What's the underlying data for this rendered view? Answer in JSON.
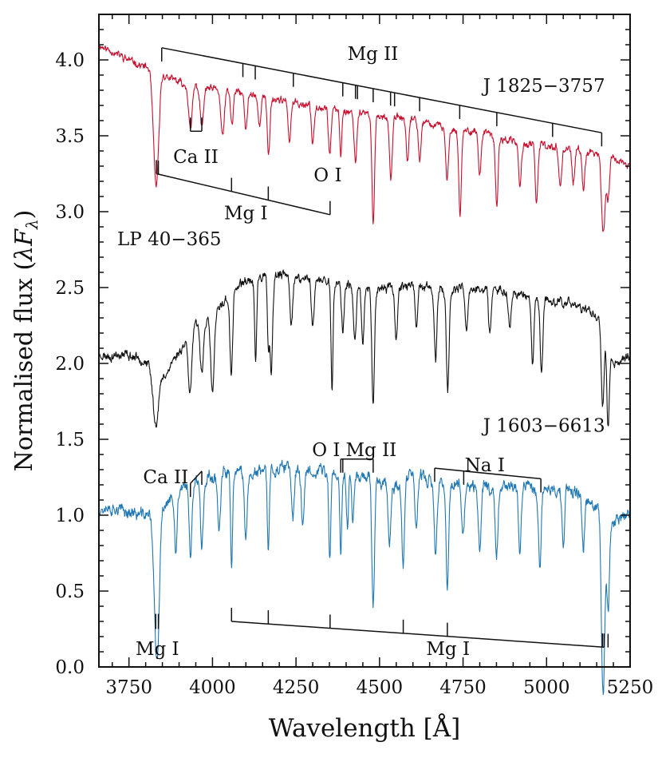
{
  "chart_data": {
    "type": "line",
    "xlabel": "Wavelength [Å]",
    "ylabel": "Normalised flux (λF_λ)",
    "ylabel_parts": {
      "main": "Normalised flux (",
      "sym": "λF",
      "sub": "λ",
      "close": ")"
    },
    "xlim": [
      3660,
      5250
    ],
    "ylim": [
      0.0,
      4.3
    ],
    "x_ticks": [
      3750,
      4000,
      4250,
      4500,
      4750,
      5000,
      5250
    ],
    "y_ticks": [
      0.0,
      0.5,
      1.0,
      1.5,
      2.0,
      2.5,
      3.0,
      3.5,
      4.0
    ],
    "x_tick_labels": [
      "3750",
      "4000",
      "4250",
      "4500",
      "4750",
      "5000",
      "5250"
    ],
    "y_tick_labels": [
      "0.0",
      "0.5",
      "1.0",
      "1.5",
      "2.0",
      "2.5",
      "3.0",
      "3.5",
      "4.0"
    ],
    "series": [
      {
        "name": "J 1825−3757",
        "color": "#c8102e",
        "seed": 11,
        "noise": 0.035,
        "continuum": [
          [
            3660,
            4.1
          ],
          [
            3800,
            3.95
          ],
          [
            3900,
            3.85
          ],
          [
            4000,
            3.8
          ],
          [
            4100,
            3.78
          ],
          [
            4200,
            3.74
          ],
          [
            4300,
            3.7
          ],
          [
            4400,
            3.66
          ],
          [
            4500,
            3.63
          ],
          [
            4600,
            3.61
          ],
          [
            4700,
            3.55
          ],
          [
            4800,
            3.52
          ],
          [
            4900,
            3.46
          ],
          [
            5000,
            3.43
          ],
          [
            5100,
            3.4
          ],
          [
            5200,
            3.35
          ],
          [
            5250,
            3.3
          ]
        ],
        "lines": [
          [
            3826,
            0.42,
            6
          ],
          [
            3832,
            0.35,
            5
          ],
          [
            3838,
            0.3,
            5
          ],
          [
            3934,
            0.3,
            5
          ],
          [
            3968,
            0.26,
            5
          ],
          [
            4030,
            0.3,
            5
          ],
          [
            4058,
            0.22,
            4
          ],
          [
            4100,
            0.25,
            4
          ],
          [
            4140,
            0.2,
            4
          ],
          [
            4168,
            0.38,
            4
          ],
          [
            4230,
            0.28,
            4
          ],
          [
            4300,
            0.25,
            4
          ],
          [
            4351,
            0.3,
            4
          ],
          [
            4384,
            0.3,
            3
          ],
          [
            4428,
            0.32,
            4
          ],
          [
            4481,
            0.7,
            4
          ],
          [
            4534,
            0.42,
            4
          ],
          [
            4584,
            0.3,
            4
          ],
          [
            4620,
            0.25,
            4
          ],
          [
            4702,
            0.36,
            4
          ],
          [
            4741,
            0.55,
            4
          ],
          [
            4800,
            0.28,
            4
          ],
          [
            4851,
            0.45,
            4
          ],
          [
            4920,
            0.3,
            4
          ],
          [
            4970,
            0.4,
            4
          ],
          [
            5041,
            0.25,
            4
          ],
          [
            5080,
            0.22,
            4
          ],
          [
            5110,
            0.25,
            4
          ],
          [
            5167,
            0.35,
            4
          ],
          [
            5173,
            0.32,
            4
          ],
          [
            5184,
            0.28,
            4
          ]
        ]
      },
      {
        "name": "LP 40−365",
        "color": "#111111",
        "seed": 23,
        "noise": 0.045,
        "continuum": [
          [
            3660,
            2.05
          ],
          [
            3750,
            2.05
          ],
          [
            3800,
            2.02
          ],
          [
            3850,
            1.9
          ],
          [
            3900,
            2.08
          ],
          [
            3950,
            2.25
          ],
          [
            4000,
            2.3
          ],
          [
            4050,
            2.45
          ],
          [
            4100,
            2.55
          ],
          [
            4200,
            2.58
          ],
          [
            4300,
            2.55
          ],
          [
            4400,
            2.52
          ],
          [
            4500,
            2.5
          ],
          [
            4600,
            2.52
          ],
          [
            4700,
            2.48
          ],
          [
            4800,
            2.5
          ],
          [
            4900,
            2.47
          ],
          [
            5000,
            2.42
          ],
          [
            5100,
            2.38
          ],
          [
            5180,
            2.25
          ],
          [
            5200,
            2.0
          ],
          [
            5250,
            2.05
          ]
        ],
        "lines": [
          [
            3830,
            0.35,
            8
          ],
          [
            3933,
            0.38,
            5
          ],
          [
            3968,
            0.3,
            5
          ],
          [
            4000,
            0.5,
            5
          ],
          [
            4056,
            0.55,
            4
          ],
          [
            4129,
            0.55,
            3
          ],
          [
            4167,
            0.42,
            3
          ],
          [
            4176,
            0.65,
            4
          ],
          [
            4236,
            0.3,
            4
          ],
          [
            4300,
            0.3,
            4
          ],
          [
            4358,
            0.7,
            3
          ],
          [
            4390,
            0.3,
            4
          ],
          [
            4426,
            0.38,
            4
          ],
          [
            4450,
            0.38,
            4
          ],
          [
            4481,
            0.75,
            4
          ],
          [
            4550,
            0.35,
            4
          ],
          [
            4610,
            0.3,
            4
          ],
          [
            4668,
            0.5,
            4
          ],
          [
            4704,
            0.65,
            4
          ],
          [
            4760,
            0.28,
            4
          ],
          [
            4830,
            0.3,
            4
          ],
          [
            4890,
            0.25,
            4
          ],
          [
            4958,
            0.45,
            4
          ],
          [
            4985,
            0.5,
            4
          ],
          [
            5168,
            0.55,
            4
          ],
          [
            5184,
            0.6,
            4
          ]
        ]
      },
      {
        "name": "J 1603−6613",
        "color": "#1f77b4",
        "seed": 37,
        "noise": 0.06,
        "continuum": [
          [
            3660,
            1.05
          ],
          [
            3750,
            1.02
          ],
          [
            3800,
            1.0
          ],
          [
            3850,
            1.05
          ],
          [
            3900,
            1.15
          ],
          [
            3950,
            1.22
          ],
          [
            4000,
            1.25
          ],
          [
            4100,
            1.27
          ],
          [
            4200,
            1.3
          ],
          [
            4300,
            1.3
          ],
          [
            4350,
            1.28
          ],
          [
            4400,
            1.27
          ],
          [
            4500,
            1.25
          ],
          [
            4550,
            1.2
          ],
          [
            4600,
            1.28
          ],
          [
            4650,
            1.22
          ],
          [
            4700,
            1.2
          ],
          [
            4800,
            1.18
          ],
          [
            4900,
            1.2
          ],
          [
            5000,
            1.18
          ],
          [
            5100,
            1.15
          ],
          [
            5150,
            1.05
          ],
          [
            5200,
            0.95
          ],
          [
            5250,
            1.0
          ]
        ],
        "lines": [
          [
            3830,
            0.75,
            6
          ],
          [
            3838,
            0.55,
            5
          ],
          [
            3890,
            0.4,
            4
          ],
          [
            3934,
            0.45,
            4
          ],
          [
            3968,
            0.4,
            4
          ],
          [
            4020,
            0.35,
            4
          ],
          [
            4057,
            0.6,
            3
          ],
          [
            4100,
            0.4,
            4
          ],
          [
            4167,
            0.5,
            3
          ],
          [
            4240,
            0.35,
            4
          ],
          [
            4270,
            0.35,
            4
          ],
          [
            4351,
            0.6,
            3
          ],
          [
            4384,
            0.5,
            3
          ],
          [
            4404,
            0.35,
            3
          ],
          [
            4420,
            0.35,
            3
          ],
          [
            4481,
            0.85,
            4
          ],
          [
            4530,
            0.4,
            4
          ],
          [
            4571,
            0.55,
            4
          ],
          [
            4610,
            0.35,
            4
          ],
          [
            4668,
            0.5,
            4
          ],
          [
            4703,
            0.65,
            4
          ],
          [
            4750,
            0.35,
            4
          ],
          [
            4800,
            0.4,
            4
          ],
          [
            4850,
            0.45,
            4
          ],
          [
            4920,
            0.45,
            4
          ],
          [
            4980,
            0.55,
            4
          ],
          [
            5050,
            0.35,
            4
          ],
          [
            5110,
            0.35,
            4
          ],
          [
            5167,
            0.75,
            4
          ],
          [
            5172,
            0.7,
            4
          ],
          [
            5184,
            0.6,
            4
          ]
        ]
      }
    ],
    "star_labels": [
      {
        "text": "J 1825−3757",
        "x": 5175,
        "y": 3.79,
        "anchor": "end"
      },
      {
        "text": "LP 40−365",
        "x": 3715,
        "y": 2.78,
        "anchor": "start"
      },
      {
        "text": "J 1603−6613",
        "x": 5175,
        "y": 1.55,
        "anchor": "end"
      }
    ],
    "line_ids": [
      {
        "label": "Mg II",
        "series": "J 1825−3757",
        "label_pos": [
          4480,
          4.0
        ],
        "label_above": true,
        "bar": [
          [
            3848,
            4.08
          ],
          [
            5165,
            3.52
          ]
        ],
        "tick_down": true,
        "ticks": [
          3848,
          4091,
          4128,
          4242,
          4390,
          4428,
          4434,
          4481,
          4533,
          4545,
          4620,
          4740,
          4851,
          5018,
          5165
        ]
      },
      {
        "label": "Ca II",
        "series": "J 1825−3757",
        "label_pos": [
          3950,
          3.32
        ],
        "label_above": false,
        "bar": [
          [
            3934,
            3.53
          ],
          [
            3968,
            3.53
          ]
        ],
        "tick_down": false,
        "ticks": [
          3934,
          3968
        ]
      },
      {
        "label": "Mg I",
        "series": "J 1825−3757",
        "label_pos": [
          4100,
          2.95
        ],
        "label_above": false,
        "bar": [
          [
            3832,
            3.25
          ],
          [
            4352,
            2.98
          ]
        ],
        "tick_down": false,
        "ticks": [
          3832,
          3838,
          4057,
          4167,
          4352
        ]
      },
      {
        "label": "O I",
        "series": "J 1825−3757",
        "label_pos": [
          4345,
          3.2
        ],
        "label_above": false,
        "bar": null,
        "ticks": []
      },
      {
        "label": "Ca II",
        "series": "J 1603−6613",
        "label_pos": [
          3860,
          1.21
        ],
        "label_above": true,
        "bar": [
          [
            3934,
            1.21
          ],
          [
            3968,
            1.29
          ]
        ],
        "tick_down": true,
        "ticks": [
          3934,
          3968
        ]
      },
      {
        "label": "O I",
        "series": "J 1603−6613",
        "label_pos": [
          4340,
          1.39
        ],
        "label_above": true,
        "bar": null,
        "ticks": []
      },
      {
        "label": "Mg II",
        "series": "J 1603−6613",
        "label_pos": [
          4475,
          1.39
        ],
        "label_above": true,
        "bar": [
          [
            4384,
            1.37
          ],
          [
            4481,
            1.37
          ]
        ],
        "tick_down": true,
        "ticks": [
          4384,
          4390,
          4481
        ]
      },
      {
        "label": "Na I",
        "series": "J 1603−6613",
        "label_pos": [
          4815,
          1.29
        ],
        "label_above": true,
        "bar": [
          [
            4665,
            1.31
          ],
          [
            4983,
            1.24
          ]
        ],
        "tick_down": true,
        "ticks": [
          4665,
          4752,
          4983
        ]
      },
      {
        "label": "Mg I",
        "series": "J 1603−6613",
        "label_pos": [
          3835,
          0.08
        ],
        "label_above": false,
        "bar": null,
        "tick_down": false,
        "ticks": [
          3830,
          3838
        ]
      },
      {
        "label": "Mg I",
        "series": "J 1603−6613",
        "label_pos": [
          4705,
          0.08
        ],
        "label_above": false,
        "bar": [
          [
            4057,
            0.3
          ],
          [
            5172,
            0.13
          ]
        ],
        "tick_down": false,
        "ticks": [
          4057,
          4167,
          4352,
          4571,
          4703,
          5167,
          5172,
          5184
        ]
      }
    ]
  }
}
